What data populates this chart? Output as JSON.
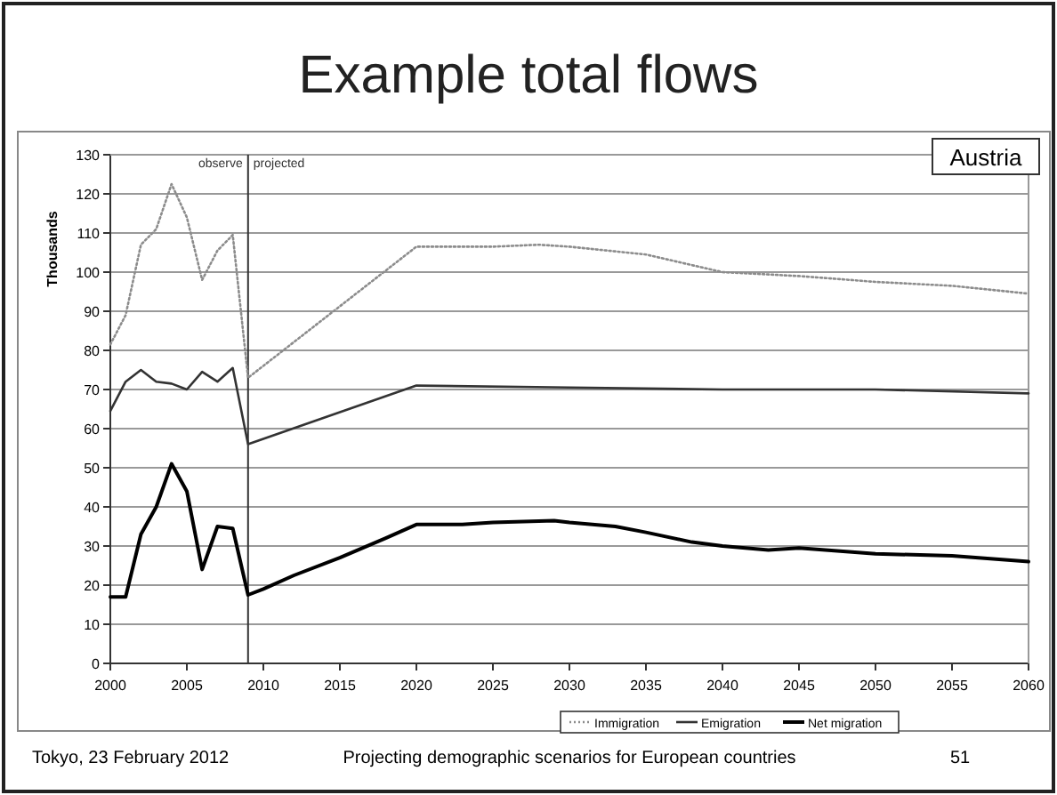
{
  "chart_data": {
    "type": "line",
    "title": "Example total flows",
    "ylabel": "Thousands",
    "xlim": [
      2000,
      2060
    ],
    "xticks": [
      2000,
      2005,
      2010,
      2015,
      2020,
      2025,
      2030,
      2035,
      2040,
      2045,
      2050,
      2055,
      2060
    ],
    "ylim": [
      0,
      130
    ],
    "yticks": [
      0,
      10,
      20,
      30,
      40,
      50,
      60,
      70,
      80,
      90,
      100,
      110,
      120,
      130
    ],
    "grid": "y",
    "legend": "bottom",
    "ref_lines": [
      {
        "axis": "x",
        "value": 2009,
        "color": "#333333",
        "line_style": "solid"
      }
    ],
    "annotations": [
      "Austria",
      "Tokyo, 23 February 2012",
      "Projecting demographic scenarios for European countries",
      "51",
      "observe",
      "projected"
    ],
    "series": [
      {
        "name": "Immigration",
        "color": "#8c8c8c",
        "line_style": "dotted",
        "x": [
          2000,
          2001,
          2002,
          2003,
          2004,
          2005,
          2006,
          2007,
          2008,
          2009,
          2020,
          2025,
          2028,
          2030,
          2035,
          2040,
          2045,
          2050,
          2055,
          2060
        ],
        "values": [
          81.5,
          89,
          107,
          111,
          122.5,
          114,
          98,
          105.5,
          109.5,
          73,
          106.5,
          106.5,
          107,
          106.5,
          104.5,
          100,
          99,
          97.5,
          96.5,
          94.5
        ]
      },
      {
        "name": "Emigration",
        "color": "#333333",
        "line_style": "solid",
        "x": [
          2000,
          2001,
          2002,
          2003,
          2004,
          2005,
          2006,
          2007,
          2008,
          2009,
          2020,
          2030,
          2040,
          2050,
          2060
        ],
        "values": [
          64.5,
          72,
          75,
          72,
          71.5,
          70,
          74.5,
          72,
          75.5,
          56,
          71,
          70.5,
          70,
          70,
          69
        ]
      },
      {
        "name": "Net migration",
        "color": "#000000",
        "line_style": "solid",
        "x": [
          2000,
          2001,
          2002,
          2003,
          2004,
          2005,
          2006,
          2007,
          2008,
          2009,
          2010,
          2012,
          2015,
          2018,
          2020,
          2023,
          2025,
          2029,
          2030,
          2033,
          2035,
          2038,
          2040,
          2043,
          2045,
          2050,
          2055,
          2060
        ],
        "values": [
          17,
          17,
          33,
          40,
          51,
          44,
          24,
          35,
          34.5,
          17.5,
          19,
          22.5,
          27,
          32,
          35.5,
          35.5,
          36,
          36.5,
          36,
          35,
          33.5,
          31,
          30,
          29,
          29.5,
          28,
          27.5,
          26
        ]
      }
    ]
  }
}
